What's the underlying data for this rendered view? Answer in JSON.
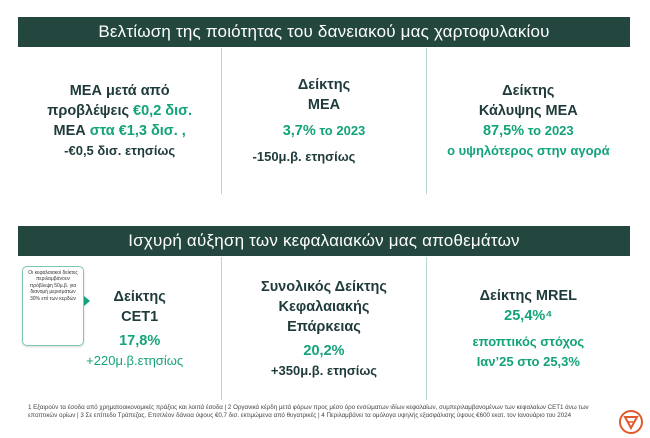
{
  "section1": {
    "title": "Βελτίωση της ποιότητας του δανειακού μας χαρτοφυλακίου",
    "cards": [
      {
        "line1": "ΜΕΑ μετά από",
        "line2a": "προβλέψεις ",
        "line2b": "€0,2 δισ.",
        "line3a": "ΜΕΑ ",
        "line3b": "στα €1,3 δισ. ,",
        "line4": "-€0,5 δισ. ετησίως"
      },
      {
        "line1": "Δείκτης",
        "line2": "ΜΕΑ",
        "value": "3,7%",
        "value_suffix": " το 2023",
        "line4": "-150μ.β. ετησίως"
      },
      {
        "line1": "Δείκτης",
        "line2": "Κάλυψης ΜΕΑ",
        "value": "87,5%",
        "value_suffix": " το 2023",
        "line4": "ο υψηλότερος στην αγορά"
      }
    ]
  },
  "section2": {
    "title": "Ισχυρή αύξηση των κεφαλαιακών μας αποθεμάτων",
    "callout": "Οι κεφαλαιακοί δείκτες περιλαμβάνουν πρόβλεψη 50μ.β. για διανομή μερισμάτων 30% επί των κερδών",
    "cards": [
      {
        "line1": "Δείκτης",
        "line2": "CET1",
        "value": "17,8%",
        "line4": "+220μ.β.ετησίως"
      },
      {
        "line1": "Συνολικός Δείκτης",
        "line2": "Κεφαλαιακής",
        "line3": "Επάρκειας",
        "value": "20,2%",
        "line5": "+350μ.β. ετησίως"
      },
      {
        "line1": "Δείκτης MREL",
        "value": "25,4%⁴",
        "line3": "εποπτικός στόχος",
        "line4": "Ιαν’25 στο 25,3%"
      }
    ]
  },
  "footnote": "1 Εξαιρούν τα έσοδα από χρηματοοικονομικές πράξεις και λοιπά έσοδα | 2 Οργανικά κέρδη μετά φόρων προς μέσο όρο ενσώματων ιδίων κεφαλαίων, συμπεριλαμβανομένων των κεφαλαίων CET1 άνω των εποπτικών ορίων | 3 Σε επίπεδο Τράπεζας. Επιπλέον δάνεια ύψους €0,7 δισ. εκτιμώμενα από θυγατρικές | 4 Περιλαμβάνει τα ομόλογα υψηλής εξασφάλισης ύψους €600 εκατ. τον Ιανουάριο του 2024",
  "colors": {
    "banner": "#23473f",
    "accent": "#13a37a",
    "dark_text": "#1f3a3a",
    "logo": "#e05a2b"
  },
  "icons": {
    "logo": "brand-logo-icon"
  }
}
